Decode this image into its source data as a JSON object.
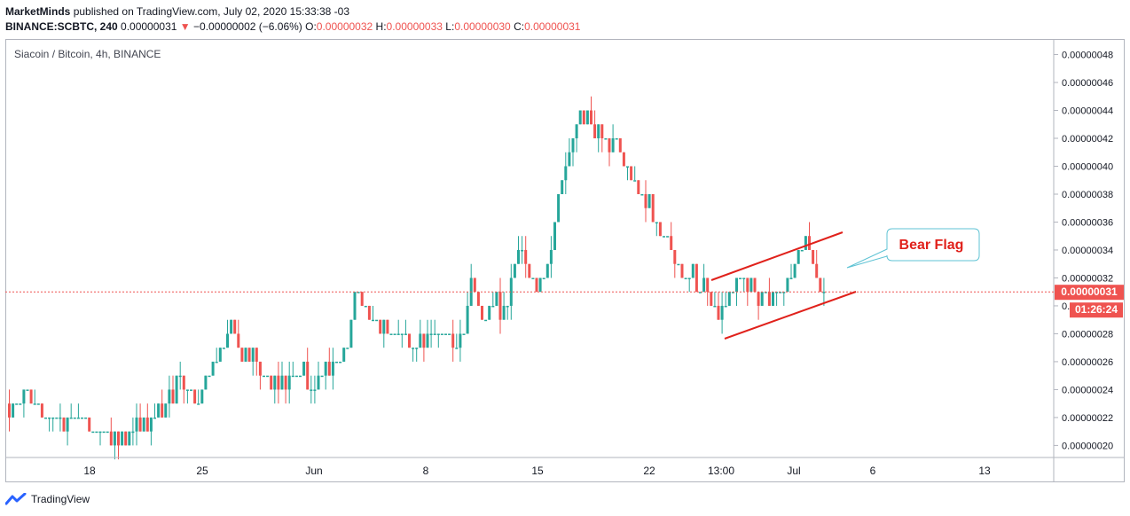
{
  "header": {
    "author": "MarketMinds",
    "published_text": "published on TradingView.com, July 02, 2020 15:33:38 -03",
    "symbol": "BINANCE:SCBTC, 240",
    "last": "0.00000031",
    "change_arrow": "▼",
    "change": "−0.00000002 (−6.06%)",
    "o_label": "O:",
    "o_value": "0.00000032",
    "h_label": "H:",
    "h_value": "0.00000033",
    "l_label": "L:",
    "l_value": "0.00000030",
    "c_label": "C:",
    "c_value": "0.00000031"
  },
  "chart_title": "Siacoin / Bitcoin, 4h, BINANCE",
  "footer": {
    "brand": "TradingView"
  },
  "colors": {
    "up": "#26a69a",
    "down": "#ef5350",
    "drawing": "#e0211b",
    "callout_border": "#5fc3d4",
    "axis_border": "#b2b5be"
  },
  "chart_data": {
    "type": "candlestick",
    "symbol": "Siacoin / Bitcoin",
    "interval": "4h",
    "x_ticks": [
      "18",
      "25",
      "Jun",
      "8",
      "15",
      "22",
      "13:00",
      "Jul",
      "6",
      "13"
    ],
    "y_ticks": [
      "0.00000020",
      "0.00000022",
      "0.00000024",
      "0.00000026",
      "0.00000028",
      "0.00000030",
      "0.00000032",
      "0.00000034",
      "0.00000036",
      "0.00000038",
      "0.00000040",
      "0.00000042",
      "0.00000044",
      "0.00000046",
      "0.00000048"
    ],
    "ylim": [
      1.92e-07,
      4.905e-07
    ],
    "current_price": {
      "label": "0.00000031",
      "value": 3.1e-07,
      "countdown": "01:26:24"
    },
    "annotation": {
      "text": "Bear Flag"
    },
    "price_path": [
      [
        0,
        23
      ],
      [
        3,
        23
      ],
      [
        6,
        24
      ],
      [
        8,
        23
      ],
      [
        10,
        22
      ],
      [
        14,
        22
      ],
      [
        16,
        21
      ],
      [
        18,
        22
      ],
      [
        22,
        22
      ],
      [
        25,
        21
      ],
      [
        28,
        21
      ],
      [
        30,
        20
      ],
      [
        34,
        21
      ],
      [
        37,
        22
      ],
      [
        40,
        22
      ],
      [
        44,
        23
      ],
      [
        47,
        25
      ],
      [
        50,
        24
      ],
      [
        53,
        23
      ],
      [
        56,
        25
      ],
      [
        59,
        27
      ],
      [
        62,
        28
      ],
      [
        65,
        27
      ],
      [
        68,
        26
      ],
      [
        72,
        25
      ],
      [
        76,
        24
      ],
      [
        80,
        25
      ],
      [
        84,
        24
      ],
      [
        88,
        25
      ],
      [
        92,
        26
      ],
      [
        94,
        27
      ],
      [
        96,
        31
      ],
      [
        98,
        30
      ],
      [
        100,
        29
      ],
      [
        104,
        28
      ],
      [
        108,
        28
      ],
      [
        112,
        27
      ],
      [
        116,
        28
      ],
      [
        120,
        28
      ],
      [
        124,
        27
      ],
      [
        126,
        28
      ],
      [
        128,
        32
      ],
      [
        130,
        30
      ],
      [
        132,
        29
      ],
      [
        134,
        30
      ],
      [
        136,
        29
      ],
      [
        138,
        30
      ],
      [
        140,
        33
      ],
      [
        142,
        34
      ],
      [
        144,
        32
      ],
      [
        146,
        31
      ],
      [
        148,
        32
      ],
      [
        150,
        34
      ],
      [
        152,
        38
      ],
      [
        154,
        40
      ],
      [
        156,
        42
      ],
      [
        158,
        43
      ],
      [
        160,
        44
      ],
      [
        162,
        42
      ],
      [
        164,
        43
      ],
      [
        166,
        41
      ],
      [
        168,
        42
      ],
      [
        170,
        40
      ],
      [
        172,
        39
      ],
      [
        174,
        38
      ],
      [
        176,
        37
      ],
      [
        178,
        36
      ],
      [
        180,
        35
      ],
      [
        182,
        35
      ],
      [
        184,
        33
      ],
      [
        186,
        32
      ],
      [
        188,
        32
      ],
      [
        190,
        31
      ],
      [
        192,
        31
      ],
      [
        194,
        30
      ],
      [
        196,
        29
      ],
      [
        198,
        30
      ],
      [
        200,
        31
      ],
      [
        202,
        32
      ],
      [
        204,
        31
      ],
      [
        206,
        31
      ],
      [
        208,
        31
      ],
      [
        210,
        30
      ],
      [
        212,
        31
      ],
      [
        214,
        31
      ],
      [
        216,
        32
      ],
      [
        218,
        34
      ],
      [
        220,
        34
      ],
      [
        222,
        33
      ],
      [
        224,
        31
      ]
    ]
  }
}
